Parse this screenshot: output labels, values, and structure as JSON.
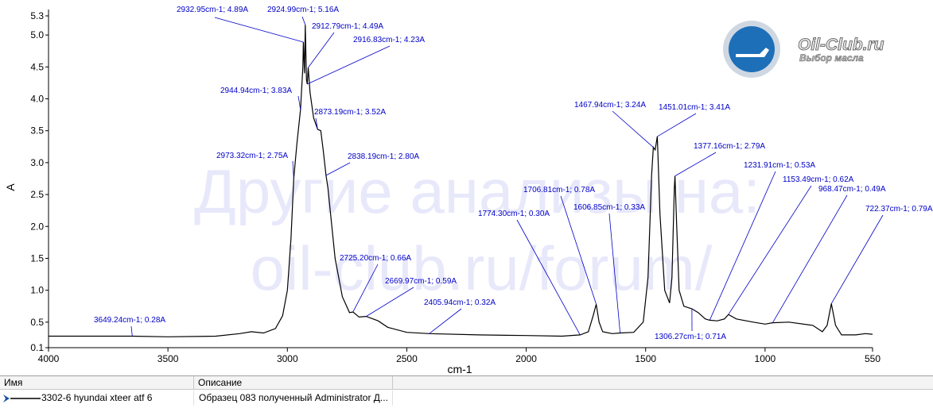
{
  "chart_data": {
    "type": "line",
    "x_label": "cm-1",
    "y_label": "A",
    "color": "#000000",
    "x": [
      4000,
      3649,
      3500,
      3300,
      3200,
      3150,
      3100,
      3050,
      3020,
      3000,
      2985,
      2973.32,
      2960,
      2944.94,
      2935,
      2932.95,
      2928,
      2924.99,
      2920,
      2916.83,
      2912.79,
      2905,
      2890,
      2873.19,
      2860,
      2850,
      2838.19,
      2830,
      2800,
      2770,
      2740,
      2725.2,
      2700,
      2669.97,
      2620,
      2580,
      2500,
      2405.94,
      2200,
      2000,
      1850,
      1774.3,
      1740,
      1720,
      1706.81,
      1695,
      1680,
      1640,
      1606.85,
      1550,
      1510,
      1490,
      1475,
      1467.94,
      1460,
      1451.01,
      1440,
      1420,
      1400,
      1390,
      1380,
      1377.16,
      1370,
      1360,
      1340,
      1306.27,
      1280,
      1250,
      1231.91,
      1200,
      1170,
      1153.49,
      1120,
      1050,
      1000,
      968.47,
      900,
      800,
      760,
      740,
      722.37,
      705,
      680,
      620,
      580,
      550
    ],
    "values": [
      0.28,
      0.28,
      0.27,
      0.28,
      0.32,
      0.35,
      0.33,
      0.4,
      0.6,
      1.0,
      1.8,
      2.75,
      3.3,
      3.83,
      4.5,
      4.89,
      4.4,
      5.16,
      4.3,
      4.23,
      4.49,
      4.1,
      3.7,
      3.52,
      3.5,
      3.2,
      2.8,
      2.6,
      1.5,
      0.9,
      0.65,
      0.66,
      0.58,
      0.59,
      0.52,
      0.42,
      0.34,
      0.32,
      0.3,
      0.29,
      0.28,
      0.3,
      0.35,
      0.6,
      0.78,
      0.5,
      0.35,
      0.32,
      0.33,
      0.34,
      0.5,
      1.2,
      2.8,
      3.24,
      3.2,
      3.41,
      2.2,
      1.0,
      0.8,
      1.2,
      2.6,
      2.79,
      2.0,
      1.0,
      0.75,
      0.71,
      0.65,
      0.55,
      0.53,
      0.52,
      0.55,
      0.62,
      0.55,
      0.5,
      0.47,
      0.49,
      0.5,
      0.45,
      0.35,
      0.45,
      0.79,
      0.45,
      0.3,
      0.3,
      0.32,
      0.31
    ],
    "xlim": [
      4000,
      550
    ],
    "ylim": [
      0.1,
      5.3
    ],
    "xticks": [
      4000,
      3500,
      3000,
      2500,
      2000,
      1500,
      1000,
      550
    ],
    "yticks": [
      0.1,
      0.5,
      {
        "value": 1,
        "label": "1.0"
      },
      1.5,
      {
        "value": 2,
        "label": "2.0"
      },
      2.5,
      {
        "value": 3,
        "label": "3.0"
      },
      3.5,
      {
        "value": 4,
        "label": "4.0"
      },
      4.5,
      {
        "value": 5,
        "label": "5.0"
      },
      5.3
    ],
    "annotations": [
      {
        "x": 3649.24,
        "y": 0.28,
        "label": "3649.24cm-1; 0.28A"
      },
      {
        "x": 2973.32,
        "y": 2.75,
        "label": "2973.32cm-1; 2.75A"
      },
      {
        "x": 2944.94,
        "y": 3.83,
        "label": "2944.94cm-1; 3.83A"
      },
      {
        "x": 2932.95,
        "y": 4.89,
        "label": "2932.95cm-1; 4.89A"
      },
      {
        "x": 2924.99,
        "y": 5.16,
        "label": "2924.99cm-1; 5.16A"
      },
      {
        "x": 2912.79,
        "y": 4.49,
        "label": "2912.79cm-1; 4.49A"
      },
      {
        "x": 2916.83,
        "y": 4.23,
        "label": "2916.83cm-1; 4.23A"
      },
      {
        "x": 2873.19,
        "y": 3.52,
        "label": "2873.19cm-1; 3.52A"
      },
      {
        "x": 2838.19,
        "y": 2.8,
        "label": "2838.19cm-1; 2.80A"
      },
      {
        "x": 2725.2,
        "y": 0.66,
        "label": "2725.20cm-1; 0.66A"
      },
      {
        "x": 2669.97,
        "y": 0.59,
        "label": "2669.97cm-1; 0.59A"
      },
      {
        "x": 2405.94,
        "y": 0.32,
        "label": "2405.94cm-1; 0.32A"
      },
      {
        "x": 1774.3,
        "y": 0.3,
        "label": "1774.30cm-1; 0.30A"
      },
      {
        "x": 1706.81,
        "y": 0.78,
        "label": "1706.81cm-1; 0.78A"
      },
      {
        "x": 1606.85,
        "y": 0.33,
        "label": "1606.85cm-1; 0.33A"
      },
      {
        "x": 1467.94,
        "y": 3.24,
        "label": "1467.94cm-1; 3.24A"
      },
      {
        "x": 1451.01,
        "y": 3.41,
        "label": "1451.01cm-1; 3.41A"
      },
      {
        "x": 1377.16,
        "y": 2.79,
        "label": "1377.16cm-1; 2.79A"
      },
      {
        "x": 1306.27,
        "y": 0.71,
        "label": "1306.27cm-1; 0.71A"
      },
      {
        "x": 1231.91,
        "y": 0.53,
        "label": "1231.91cm-1; 0.53A"
      },
      {
        "x": 1153.49,
        "y": 0.62,
        "label": "1153.49cm-1; 0.62A"
      },
      {
        "x": 968.47,
        "y": 0.49,
        "label": "968.47cm-1; 0.49A"
      },
      {
        "x": 722.37,
        "y": 0.79,
        "label": "722.37cm-1; 0.79A"
      }
    ]
  },
  "watermark": [
    "Другие анализы на:",
    "oil-club.ru/forum/"
  ],
  "logo": {
    "title": "Oil-Club.ru",
    "subtitle": "Выбор масла"
  },
  "table": {
    "headers": [
      "Имя",
      "Описание"
    ],
    "rows": [
      [
        "3302-6 hyundai xteer atf 6",
        "Образец 083 полученный Administrator Д..."
      ]
    ]
  }
}
